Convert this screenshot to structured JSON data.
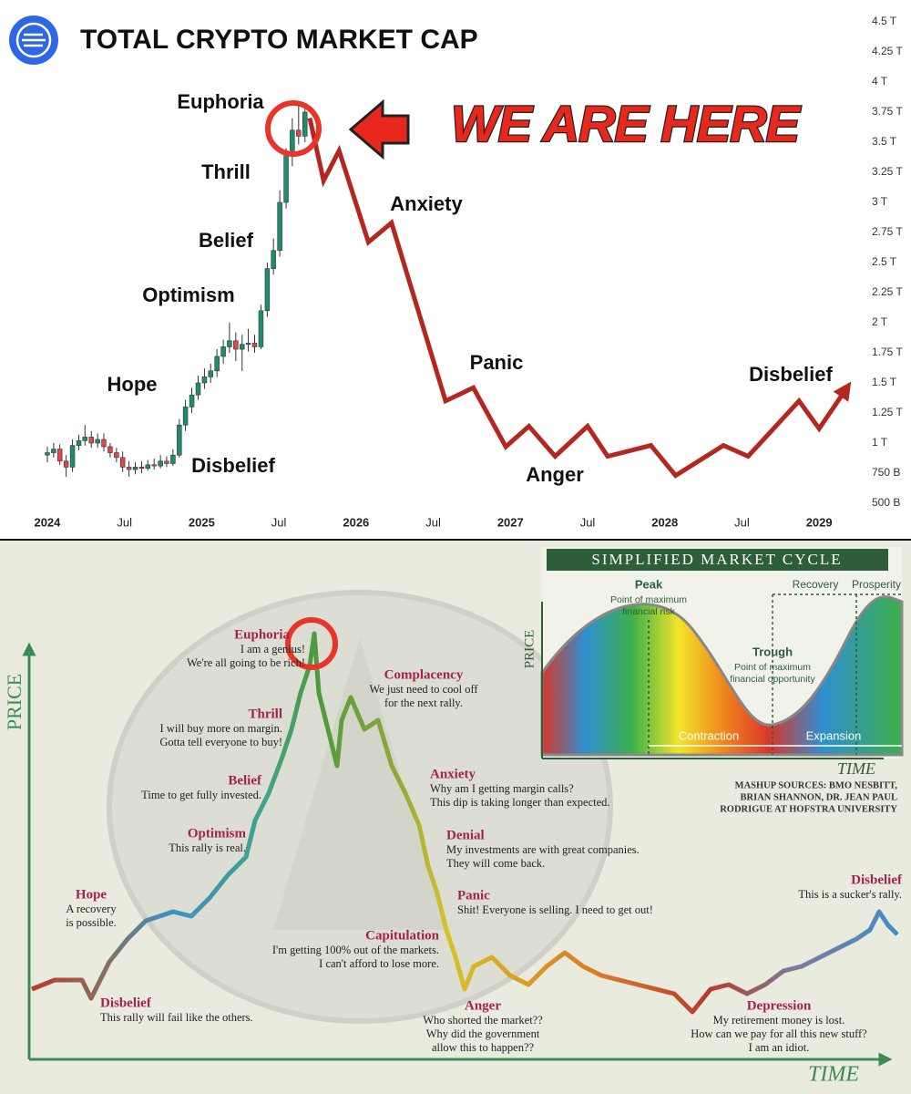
{
  "chart_data": {
    "type": "candlestick",
    "title": "TOTAL CRYPTO MARKET CAP",
    "callout": "WE ARE HERE",
    "x": [
      2024.0,
      2024.041,
      2024.081,
      2024.122,
      2024.163,
      2024.204,
      2024.244,
      2024.285,
      2024.326,
      2024.366,
      2024.407,
      2024.448,
      2024.488,
      2024.529,
      2024.57,
      2024.611,
      2024.651,
      2024.692,
      2024.733,
      2024.773,
      2024.814,
      2024.855,
      2024.895,
      2024.936,
      2024.977,
      2025.018,
      2025.058,
      2025.099,
      2025.14,
      2025.18,
      2025.221,
      2025.262,
      2025.302,
      2025.343,
      2025.384,
      2025.425,
      2025.465,
      2025.506,
      2025.547,
      2025.587,
      2025.628,
      2025.669
    ],
    "open": [
      0.9,
      0.92,
      0.95,
      0.85,
      0.8,
      0.98,
      1.02,
      1.05,
      1.0,
      1.03,
      0.97,
      0.92,
      0.88,
      0.8,
      0.78,
      0.8,
      0.79,
      0.82,
      0.81,
      0.85,
      0.83,
      0.9,
      1.15,
      1.3,
      1.4,
      1.5,
      1.55,
      1.6,
      1.72,
      1.8,
      1.85,
      1.78,
      1.82,
      1.83,
      1.8,
      2.1,
      2.45,
      2.6,
      3.0,
      3.4,
      3.6,
      3.55
    ],
    "high": [
      0.97,
      1.0,
      0.99,
      0.9,
      1.03,
      1.07,
      1.15,
      1.1,
      1.08,
      1.08,
      1.0,
      0.96,
      0.93,
      0.85,
      0.84,
      0.85,
      0.86,
      0.87,
      0.9,
      0.89,
      0.95,
      1.2,
      1.36,
      1.46,
      1.56,
      1.62,
      1.66,
      1.78,
      1.86,
      2.0,
      1.92,
      1.9,
      1.95,
      1.9,
      2.15,
      2.5,
      2.7,
      3.1,
      3.45,
      3.7,
      3.8,
      3.82
    ],
    "low": [
      0.84,
      0.88,
      0.82,
      0.72,
      0.76,
      0.94,
      0.98,
      0.96,
      0.96,
      0.93,
      0.88,
      0.84,
      0.76,
      0.72,
      0.74,
      0.75,
      0.77,
      0.78,
      0.79,
      0.8,
      0.81,
      0.88,
      1.1,
      1.25,
      1.36,
      1.45,
      1.5,
      1.55,
      1.66,
      1.75,
      1.68,
      1.6,
      1.76,
      1.75,
      1.78,
      2.05,
      2.4,
      2.55,
      2.95,
      3.3,
      3.48,
      3.5
    ],
    "close": [
      0.92,
      0.95,
      0.85,
      0.8,
      0.98,
      1.02,
      1.05,
      1.0,
      1.03,
      0.97,
      0.92,
      0.88,
      0.8,
      0.78,
      0.8,
      0.79,
      0.82,
      0.81,
      0.85,
      0.83,
      0.9,
      1.15,
      1.3,
      1.4,
      1.5,
      1.55,
      1.6,
      1.72,
      1.8,
      1.85,
      1.78,
      1.82,
      1.83,
      1.8,
      2.1,
      2.45,
      2.6,
      3.0,
      3.4,
      3.6,
      3.55,
      3.75
    ],
    "up_color": "#1e8c6e",
    "down_color": "#e0464b",
    "projection": {
      "x": [
        2025.7,
        2025.79,
        2025.89,
        2026.08,
        2026.23,
        2026.58,
        2026.76,
        2026.97,
        2027.12,
        2027.29,
        2027.5,
        2027.63,
        2027.91,
        2028.07,
        2028.38,
        2028.54,
        2028.87,
        2029.0,
        2029.18
      ],
      "values": [
        3.7,
        3.18,
        3.43,
        2.67,
        2.83,
        1.35,
        1.46,
        0.97,
        1.14,
        0.89,
        1.14,
        0.89,
        0.98,
        0.73,
        0.98,
        0.89,
        1.35,
        1.12,
        1.46
      ],
      "color": "#b3271e"
    },
    "annotations": [
      "Euphoria",
      "Thrill",
      "Belief",
      "Optimism",
      "Hope",
      "Disbelief",
      "Anxiety",
      "Panic",
      "Anger",
      "Disbelief"
    ],
    "xlim": [
      2023.9,
      2029.3
    ],
    "xticks": [
      2024,
      {
        "value": 2024.5,
        "label": "Jul"
      },
      2025,
      {
        "value": 2025.5,
        "label": "Jul"
      },
      2026,
      {
        "value": 2026.5,
        "label": "Jul"
      },
      2027,
      {
        "value": 2027.5,
        "label": "Jul"
      },
      2028,
      {
        "value": 2028.5,
        "label": "Jul"
      },
      2029
    ],
    "ylim": [
      0.5,
      4.5
    ],
    "yticks": [
      {
        "value": 0.5,
        "label": "500 B"
      },
      {
        "value": 0.75,
        "label": "750 B"
      },
      {
        "value": 1,
        "label": "1 T"
      },
      {
        "value": 1.25,
        "label": "1.25 T"
      },
      {
        "value": 1.5,
        "label": "1.5 T"
      },
      {
        "value": 1.75,
        "label": "1.75 T"
      },
      {
        "value": 2,
        "label": "2 T"
      },
      {
        "value": 2.25,
        "label": "2.25 T"
      },
      {
        "value": 2.5,
        "label": "2.5 T"
      },
      {
        "value": 2.75,
        "label": "2.75 T"
      },
      {
        "value": 3,
        "label": "3 T"
      },
      {
        "value": 3.25,
        "label": "3.25 T"
      },
      {
        "value": 3.5,
        "label": "3.5 T"
      },
      {
        "value": 3.75,
        "label": "3.75 T"
      },
      {
        "value": 4,
        "label": "4 T"
      },
      {
        "value": 4.25,
        "label": "4.25 T"
      },
      {
        "value": 4.5,
        "label": "4.5 T"
      }
    ]
  },
  "diagram": {
    "price_label": "PRICE",
    "time_label": "TIME",
    "stages": [
      {
        "name": "Disbelief",
        "caption": [
          "This rally will fail like the others."
        ]
      },
      {
        "name": "Hope",
        "caption": [
          "A recovery",
          "is possible."
        ]
      },
      {
        "name": "Optimism",
        "caption": [
          "This rally is real."
        ]
      },
      {
        "name": "Belief",
        "caption": [
          "Time to get fully invested."
        ]
      },
      {
        "name": "Thrill",
        "caption": [
          "I will buy more on margin.",
          "Gotta tell everyone to buy!"
        ]
      },
      {
        "name": "Euphoria",
        "caption": [
          "I am a genius!",
          "We're all going to be rich!"
        ]
      },
      {
        "name": "Complacency",
        "caption": [
          "We just need to cool off",
          "for the next rally."
        ]
      },
      {
        "name": "Anxiety",
        "caption": [
          "Why am I getting margin calls?",
          "This dip is taking longer than expected."
        ]
      },
      {
        "name": "Denial",
        "caption": [
          "My investments are with great companies.",
          "They will come back."
        ]
      },
      {
        "name": "Panic",
        "caption": [
          "Shit! Everyone is selling. I need to get out!"
        ]
      },
      {
        "name": "Capitulation",
        "caption": [
          "I'm getting 100% out of the markets.",
          "I can't afford to lose more."
        ]
      },
      {
        "name": "Anger",
        "caption": [
          "Who shorted the market??",
          "Why did the government",
          "allow this to happen??"
        ]
      },
      {
        "name": "Depression",
        "caption": [
          "My retirement money is lost.",
          "How can we pay for all this new stuff?",
          "I am an idiot."
        ]
      },
      {
        "name": "Disbelief",
        "caption": [
          "This is a sucker's rally."
        ]
      }
    ],
    "inset": {
      "title": "SIMPLIFIED MARKET CYCLE",
      "price_label": "PRICE",
      "time_label": "TIME",
      "peak": "Peak",
      "peak_note": [
        "Point of maximum",
        "financial risk"
      ],
      "trough": "Trough",
      "trough_note": [
        "Point of maximum",
        "financial opportunity"
      ],
      "recovery": "Recovery",
      "prosperity": "Prosperity",
      "contraction": "Contraction",
      "expansion": "Expansion",
      "sources": [
        "MASHUP SOURCES: BMO NESBITT,",
        "BRIAN SHANNON, DR. JEAN PAUL",
        "RODRIGUE AT HOFSTRA UNIVERSITY"
      ]
    }
  }
}
